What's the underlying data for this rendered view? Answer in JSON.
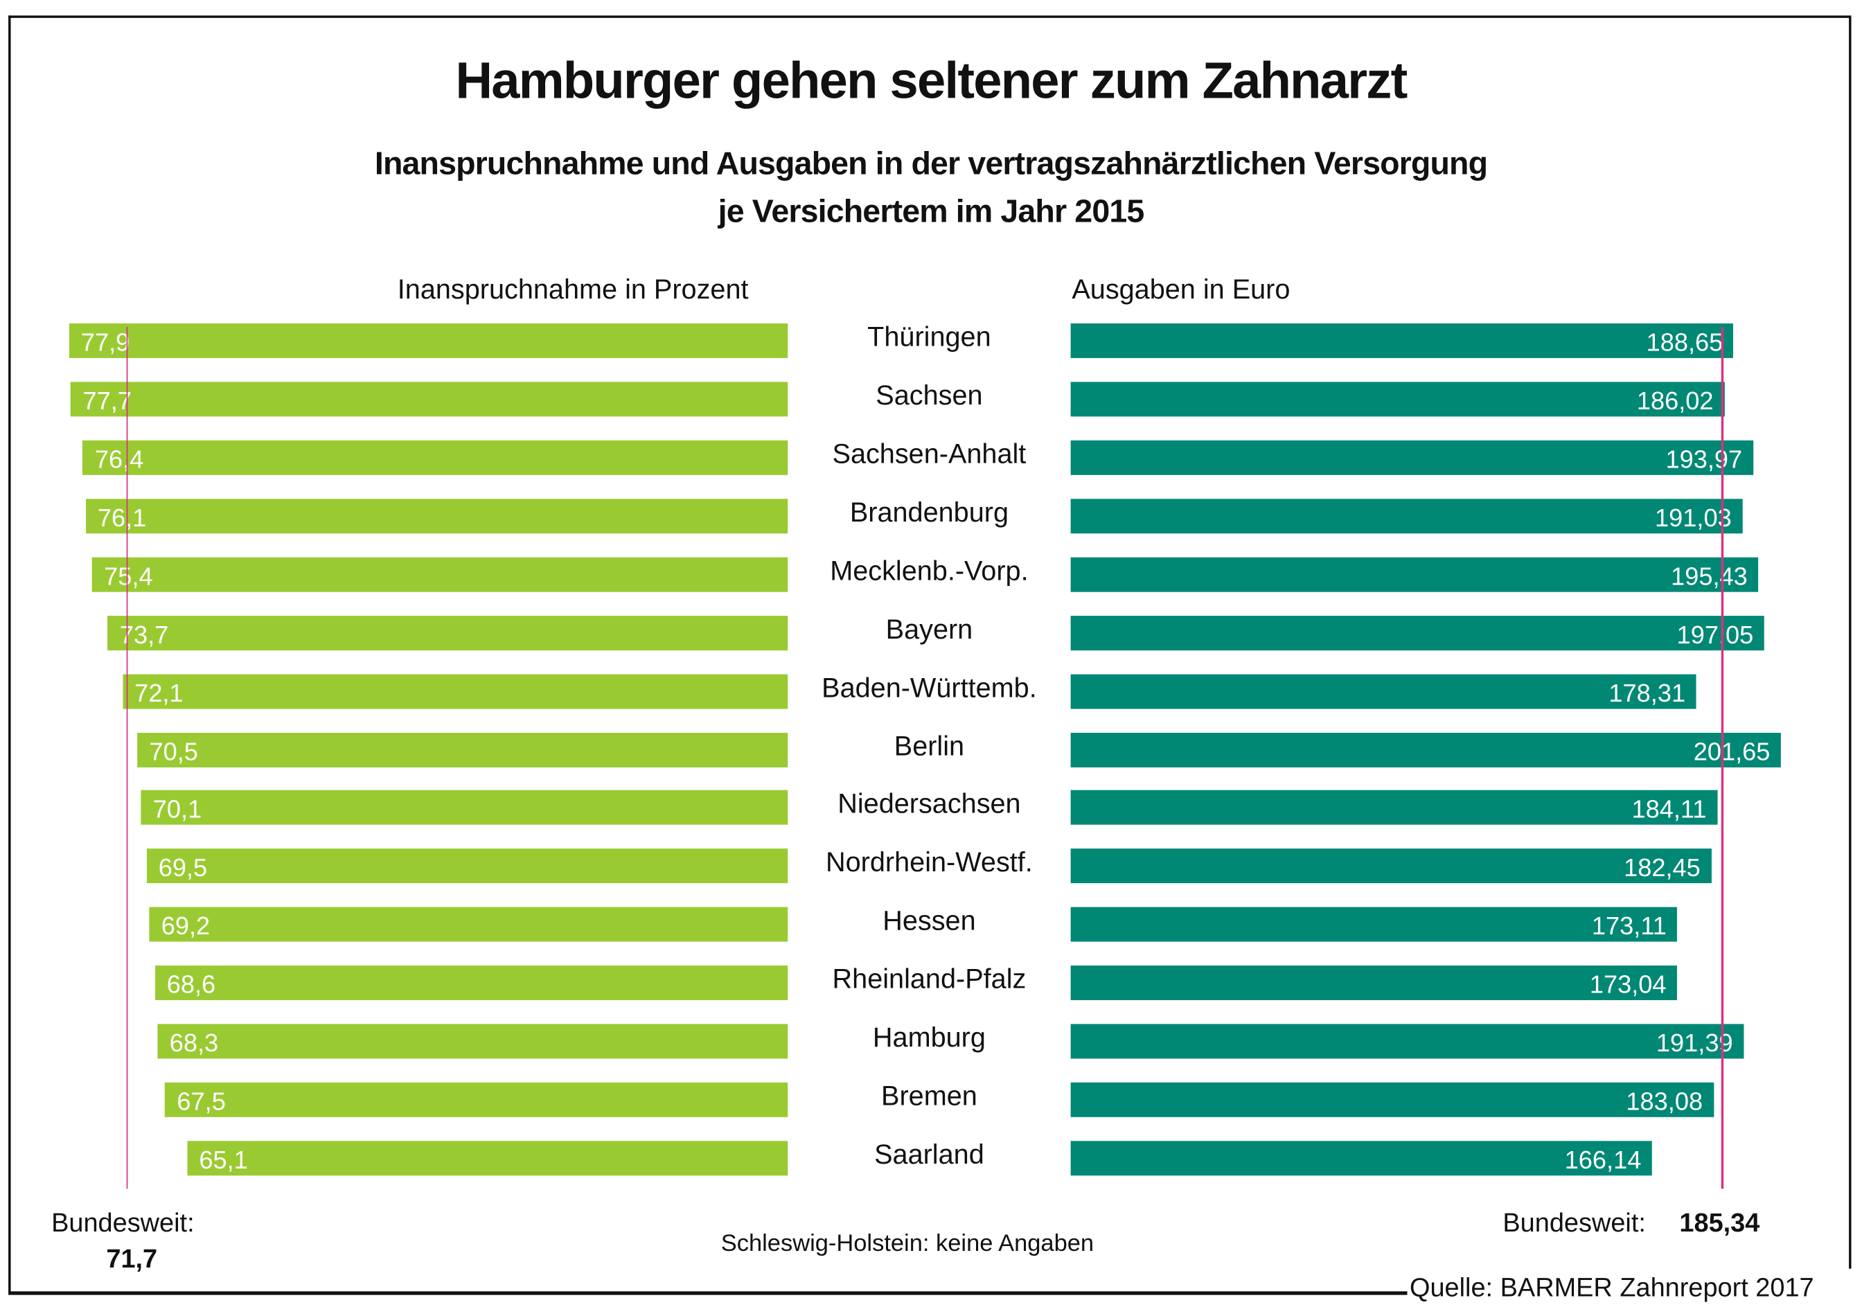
{
  "chart_data": {
    "type": "bar",
    "orientation": "horizontal",
    "title": "Hamburger gehen seltener zum Zahnarzt",
    "subtitle": [
      "Inanspruchnahme und Ausgaben in der vertragszahnärztlichen Versorgung",
      "je Versichertem im Jahr 2015"
    ],
    "categories": [
      "Thüringen",
      "Sachsen",
      "Sachsen-Anhalt",
      "Brandenburg",
      "Mecklenb.-Vorp.",
      "Bayern",
      "Baden-Württemb.",
      "Berlin",
      "Niedersachsen",
      "Nordrhein-Westf.",
      "Hessen",
      "Rheinland-Pfalz",
      "Hamburg",
      "Bremen",
      "Saarland"
    ],
    "series": [
      {
        "name": "Inanspruchnahme in Prozent",
        "color": "#9aca32",
        "values": [
          77.9,
          77.7,
          76.4,
          76.1,
          75.4,
          73.7,
          72.1,
          70.5,
          70.1,
          69.5,
          69.2,
          68.6,
          68.3,
          67.5,
          65.1
        ],
        "labels": [
          "77,9",
          "77,7",
          "76,4",
          "76,1",
          "75,4",
          "73,7",
          "72,1",
          "70,5",
          "70,1",
          "69,5",
          "69,2",
          "68,6",
          "68,3",
          "67,5",
          "65,1"
        ]
      },
      {
        "name": "Ausgaben in Euro",
        "color": "#008874",
        "values": [
          188.65,
          186.02,
          193.97,
          191.03,
          195.43,
          197.05,
          178.31,
          201.65,
          184.11,
          182.45,
          173.11,
          173.04,
          191.39,
          183.08,
          166.14
        ],
        "labels": [
          "188,65",
          "186,02",
          "193,97",
          "191,03",
          "195,43",
          "197,05",
          "178,31",
          "201,65",
          "184,11",
          "182,45",
          "173,11",
          "173,04",
          "191,39",
          "183,08",
          "166,14"
        ]
      }
    ],
    "reference": {
      "color": "#d6337f",
      "left": {
        "label": "Bundesweit:",
        "value": 71.7,
        "value_label": "71,7"
      },
      "right": {
        "label": "Bundesweit:",
        "value": 185.34,
        "value_label": "185,34"
      }
    },
    "note": "Schleswig-Holstein: keine Angaben",
    "source": "Quelle: BARMER Zahnreport 2017"
  }
}
